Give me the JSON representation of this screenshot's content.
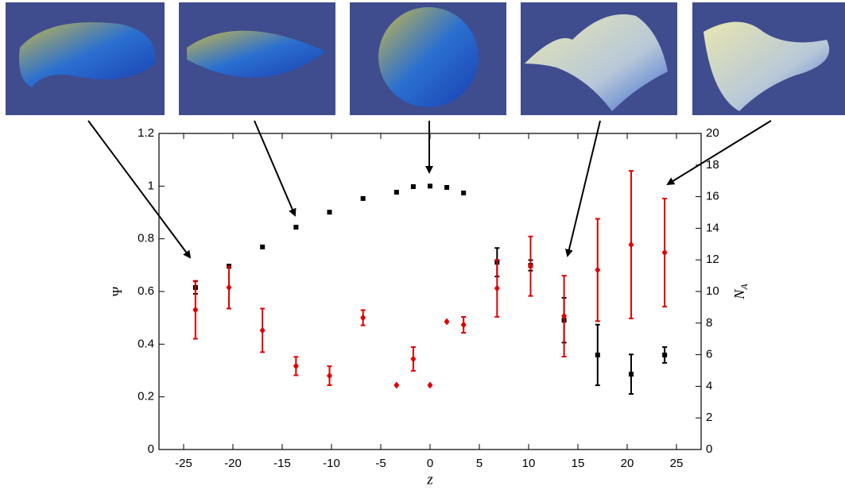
{
  "chart_data": {
    "type": "scatter",
    "xlabel": "z",
    "ylabel": "Ψ",
    "y2label": {
      "base": "N",
      "sub": "A"
    },
    "x": [
      -23.8,
      -20.4,
      -17,
      -13.6,
      -10.2,
      -6.8,
      -3.4,
      -1.7,
      0,
      1.7,
      3.4,
      6.8,
      10.2,
      13.6,
      17,
      20.4,
      23.8
    ],
    "xlim": [
      -27.5,
      27.5
    ],
    "xticks": [
      -25,
      -20,
      -15,
      -10,
      -5,
      0,
      5,
      10,
      15,
      20,
      25
    ],
    "ylim": [
      0,
      1.2
    ],
    "yticks": [
      0,
      0.2,
      0.4,
      0.6,
      0.8,
      1,
      1.2
    ],
    "y2lim": [
      0,
      20
    ],
    "y2ticks": [
      0,
      2,
      4,
      6,
      8,
      10,
      12,
      14,
      16,
      18,
      20
    ],
    "series": [
      {
        "color": "#000000",
        "marker": "square",
        "values": [
          0.615,
          0.696,
          0.769,
          0.844,
          0.901,
          0.953,
          0.977,
          0.998,
          1.0,
          0.995,
          0.974,
          0.711,
          0.699,
          0.491,
          0.359,
          0.286,
          0.359
        ],
        "errors": [
          0.024,
          null,
          null,
          null,
          null,
          null,
          null,
          null,
          null,
          null,
          null,
          0.054,
          0.02,
          0.085,
          0.115,
          0.075,
          0.03
        ]
      },
      {
        "color": "#e00000",
        "marker": "diamond",
        "axis": "y2",
        "values": [
          8.84,
          10.25,
          7.54,
          5.28,
          4.67,
          8.34,
          4.07,
          5.73,
          4.07,
          8.09,
          7.89,
          10.2,
          11.6,
          8.44,
          11.36,
          12.96,
          12.46
        ],
        "errors": [
          1.83,
          1.33,
          1.38,
          0.58,
          0.6,
          0.48,
          null,
          0.75,
          null,
          null,
          0.5,
          1.8,
          1.88,
          2.56,
          3.24,
          4.67,
          3.42
        ]
      }
    ]
  }
}
